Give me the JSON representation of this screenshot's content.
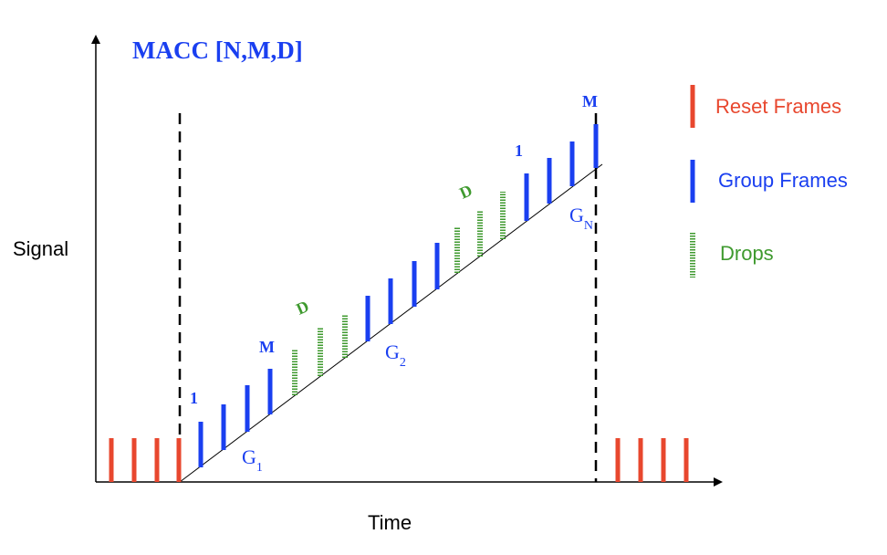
{
  "diagram": {
    "title": "MACC [N,M,D]",
    "axis_y_label": "Signal",
    "axis_x_label": "Time",
    "annotations": {
      "first_group_start": "1",
      "first_group_end": "M",
      "first_drop": "D",
      "last_drop": "D",
      "last_group_start": "1",
      "last_group_end": "M"
    },
    "group_labels": {
      "g1_base": "G",
      "g1_sub": "1",
      "g2_base": "G",
      "g2_sub": "2",
      "gn_base": "G",
      "gn_sub": "N"
    },
    "legend": {
      "reset": "Reset Frames",
      "group": "Group Frames",
      "drops": "Drops"
    },
    "colors": {
      "reset": "#e8472e",
      "group": "#1a3ff0",
      "drop": "#3f9a2f",
      "title": "#1a3ff0",
      "axis": "#000000"
    }
  }
}
